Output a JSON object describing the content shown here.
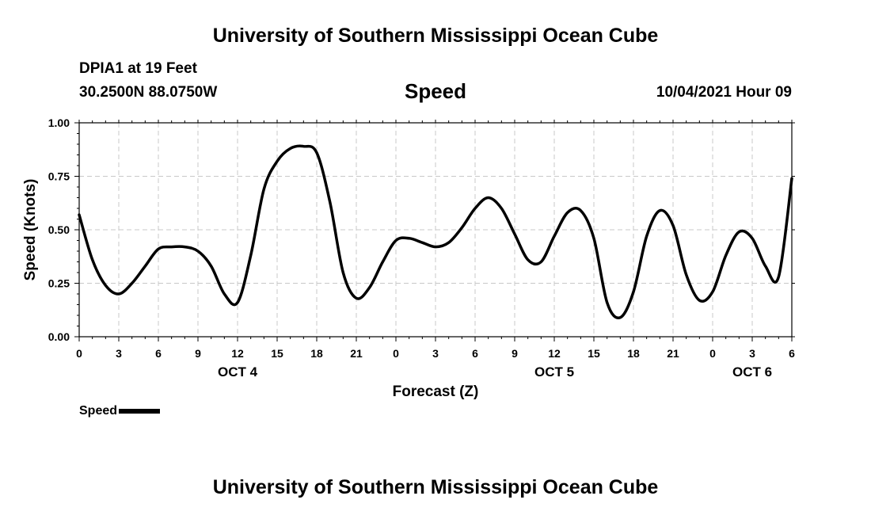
{
  "header": {
    "top_title": "University of Southern Mississippi Ocean Cube",
    "station": "DPIA1 at 19 Feet",
    "coords": "30.2500N  88.0750W",
    "datetime": "10/04/2021 Hour 09"
  },
  "footer": {
    "bottom_title": "University of Southern Mississippi Ocean Cube"
  },
  "legend": {
    "label": "Speed",
    "color": "#000000"
  },
  "chart_data": {
    "type": "line",
    "title": "Speed",
    "xlabel": "Forecast (Z)",
    "ylabel": "Speed (Knots)",
    "xlim": [
      0,
      54
    ],
    "ylim": [
      0,
      1
    ],
    "grid": true,
    "yticks": [
      "0.00",
      "0.25",
      "0.50",
      "0.75",
      "1.00"
    ],
    "xticks": [
      "0",
      "3",
      "6",
      "9",
      "12",
      "15",
      "18",
      "21",
      "0",
      "3",
      "6",
      "9",
      "12",
      "15",
      "18",
      "21",
      "0",
      "3",
      "6"
    ],
    "day_labels": [
      {
        "hour": 12,
        "label": "OCT 4"
      },
      {
        "hour": 36,
        "label": "OCT 5"
      },
      {
        "hour": 51,
        "label": "OCT 6"
      }
    ],
    "series": [
      {
        "name": "Speed",
        "color": "#000000",
        "x": [
          0,
          1,
          2,
          3,
          4,
          5,
          6,
          7,
          8,
          9,
          10,
          11,
          12,
          13,
          14,
          15,
          16,
          17,
          18,
          19,
          20,
          21,
          22,
          23,
          24,
          25,
          26,
          27,
          28,
          29,
          30,
          31,
          32,
          33,
          34,
          35,
          36,
          37,
          38,
          39,
          40,
          41,
          42,
          43,
          44,
          45,
          46,
          47,
          48,
          49,
          50,
          51,
          52,
          53,
          54
        ],
        "y": [
          0.57,
          0.36,
          0.24,
          0.2,
          0.25,
          0.33,
          0.41,
          0.42,
          0.42,
          0.4,
          0.33,
          0.2,
          0.16,
          0.38,
          0.69,
          0.82,
          0.88,
          0.89,
          0.86,
          0.63,
          0.3,
          0.18,
          0.23,
          0.35,
          0.45,
          0.46,
          0.44,
          0.42,
          0.44,
          0.51,
          0.6,
          0.65,
          0.6,
          0.48,
          0.36,
          0.35,
          0.47,
          0.58,
          0.59,
          0.46,
          0.16,
          0.09,
          0.21,
          0.47,
          0.59,
          0.52,
          0.29,
          0.17,
          0.21,
          0.38,
          0.49,
          0.46,
          0.33,
          0.28,
          0.74
        ]
      }
    ]
  }
}
